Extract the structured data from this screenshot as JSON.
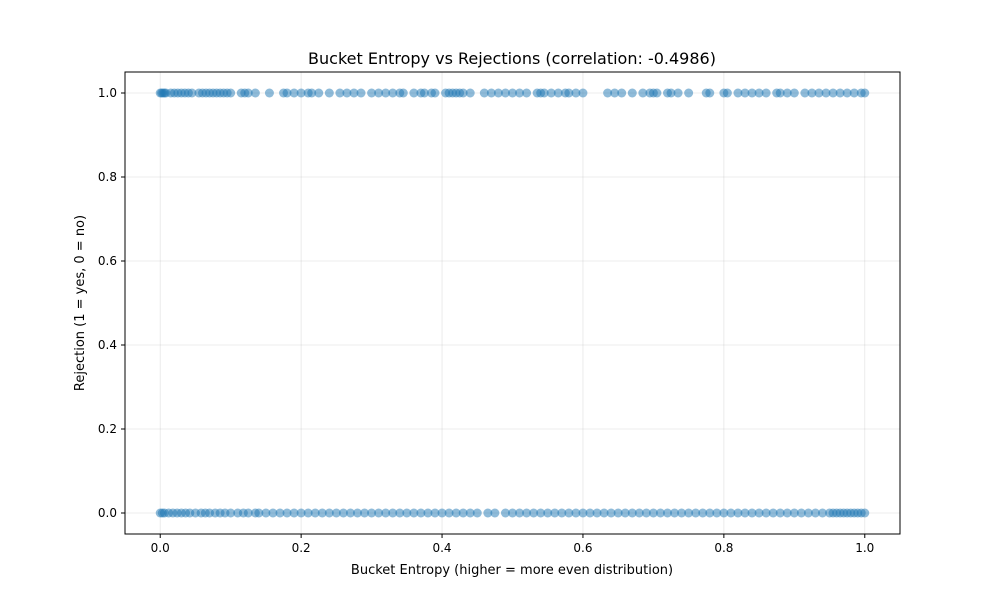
{
  "chart_data": {
    "type": "scatter",
    "title": "Bucket Entropy vs Rejections (correlation: -0.4986)",
    "xlabel": "Bucket Entropy (higher = more even distribution)",
    "ylabel": "Rejection (1 = yes, 0 = no)",
    "xlim": [
      -0.05,
      1.05
    ],
    "ylim": [
      -0.05,
      1.05
    ],
    "x_ticks": [
      0.0,
      0.2,
      0.4,
      0.6,
      0.8,
      1.0
    ],
    "x_tick_labels": [
      "0.0",
      "0.2",
      "0.4",
      "0.6",
      "0.8",
      "1.0"
    ],
    "y_ticks": [
      0.0,
      0.2,
      0.4,
      0.6,
      0.8,
      1.0
    ],
    "y_tick_labels": [
      "0.0",
      "0.2",
      "0.4",
      "0.6",
      "0.8",
      "1.0"
    ],
    "grid": true,
    "marker_color": "#1f77b4",
    "marker_alpha": 0.5,
    "series": [
      {
        "points_y1": [
          [
            0.0,
            1
          ],
          [
            0.002,
            1
          ],
          [
            0.004,
            1
          ],
          [
            0.006,
            1
          ],
          [
            0.008,
            1
          ],
          [
            0.015,
            1
          ],
          [
            0.02,
            1
          ],
          [
            0.025,
            1
          ],
          [
            0.03,
            1
          ],
          [
            0.035,
            1
          ],
          [
            0.04,
            1
          ],
          [
            0.045,
            1
          ],
          [
            0.055,
            1
          ],
          [
            0.06,
            1
          ],
          [
            0.065,
            1
          ],
          [
            0.07,
            1
          ],
          [
            0.075,
            1
          ],
          [
            0.08,
            1
          ],
          [
            0.085,
            1
          ],
          [
            0.09,
            1
          ],
          [
            0.095,
            1
          ],
          [
            0.1,
            1
          ],
          [
            0.115,
            1
          ],
          [
            0.12,
            1
          ],
          [
            0.125,
            1
          ],
          [
            0.135,
            1
          ],
          [
            0.155,
            1
          ],
          [
            0.175,
            1
          ],
          [
            0.18,
            1
          ],
          [
            0.19,
            1
          ],
          [
            0.2,
            1
          ],
          [
            0.21,
            1
          ],
          [
            0.215,
            1
          ],
          [
            0.225,
            1
          ],
          [
            0.24,
            1
          ],
          [
            0.255,
            1
          ],
          [
            0.265,
            1
          ],
          [
            0.275,
            1
          ],
          [
            0.285,
            1
          ],
          [
            0.3,
            1
          ],
          [
            0.31,
            1
          ],
          [
            0.32,
            1
          ],
          [
            0.33,
            1
          ],
          [
            0.34,
            1
          ],
          [
            0.345,
            1
          ],
          [
            0.36,
            1
          ],
          [
            0.37,
            1
          ],
          [
            0.375,
            1
          ],
          [
            0.385,
            1
          ],
          [
            0.39,
            1
          ],
          [
            0.405,
            1
          ],
          [
            0.41,
            1
          ],
          [
            0.415,
            1
          ],
          [
            0.42,
            1
          ],
          [
            0.425,
            1
          ],
          [
            0.43,
            1
          ],
          [
            0.44,
            1
          ],
          [
            0.46,
            1
          ],
          [
            0.47,
            1
          ],
          [
            0.48,
            1
          ],
          [
            0.49,
            1
          ],
          [
            0.5,
            1
          ],
          [
            0.51,
            1
          ],
          [
            0.52,
            1
          ],
          [
            0.535,
            1
          ],
          [
            0.54,
            1
          ],
          [
            0.545,
            1
          ],
          [
            0.555,
            1
          ],
          [
            0.565,
            1
          ],
          [
            0.575,
            1
          ],
          [
            0.58,
            1
          ],
          [
            0.59,
            1
          ],
          [
            0.6,
            1
          ],
          [
            0.635,
            1
          ],
          [
            0.645,
            1
          ],
          [
            0.655,
            1
          ],
          [
            0.67,
            1
          ],
          [
            0.685,
            1
          ],
          [
            0.695,
            1
          ],
          [
            0.7,
            1
          ],
          [
            0.705,
            1
          ],
          [
            0.72,
            1
          ],
          [
            0.725,
            1
          ],
          [
            0.735,
            1
          ],
          [
            0.75,
            1
          ],
          [
            0.775,
            1
          ],
          [
            0.78,
            1
          ],
          [
            0.8,
            1
          ],
          [
            0.805,
            1
          ],
          [
            0.82,
            1
          ],
          [
            0.83,
            1
          ],
          [
            0.84,
            1
          ],
          [
            0.85,
            1
          ],
          [
            0.86,
            1
          ],
          [
            0.875,
            1
          ],
          [
            0.88,
            1
          ],
          [
            0.89,
            1
          ],
          [
            0.9,
            1
          ],
          [
            0.915,
            1
          ],
          [
            0.925,
            1
          ],
          [
            0.935,
            1
          ],
          [
            0.945,
            1
          ],
          [
            0.955,
            1
          ],
          [
            0.965,
            1
          ],
          [
            0.975,
            1
          ],
          [
            0.985,
            1
          ],
          [
            0.995,
            1
          ],
          [
            1.0,
            1
          ]
        ],
        "points_y0": [
          [
            0.0,
            0
          ],
          [
            0.003,
            0
          ],
          [
            0.006,
            0
          ],
          [
            0.012,
            0
          ],
          [
            0.018,
            0
          ],
          [
            0.024,
            0
          ],
          [
            0.03,
            0
          ],
          [
            0.036,
            0
          ],
          [
            0.042,
            0
          ],
          [
            0.05,
            0
          ],
          [
            0.058,
            0
          ],
          [
            0.064,
            0
          ],
          [
            0.07,
            0
          ],
          [
            0.078,
            0
          ],
          [
            0.085,
            0
          ],
          [
            0.092,
            0
          ],
          [
            0.1,
            0
          ],
          [
            0.11,
            0
          ],
          [
            0.118,
            0
          ],
          [
            0.125,
            0
          ],
          [
            0.135,
            0
          ],
          [
            0.14,
            0
          ],
          [
            0.15,
            0
          ],
          [
            0.16,
            0
          ],
          [
            0.17,
            0
          ],
          [
            0.18,
            0
          ],
          [
            0.19,
            0
          ],
          [
            0.2,
            0
          ],
          [
            0.21,
            0
          ],
          [
            0.22,
            0
          ],
          [
            0.23,
            0
          ],
          [
            0.24,
            0
          ],
          [
            0.25,
            0
          ],
          [
            0.26,
            0
          ],
          [
            0.27,
            0
          ],
          [
            0.28,
            0
          ],
          [
            0.29,
            0
          ],
          [
            0.3,
            0
          ],
          [
            0.31,
            0
          ],
          [
            0.32,
            0
          ],
          [
            0.33,
            0
          ],
          [
            0.34,
            0
          ],
          [
            0.35,
            0
          ],
          [
            0.36,
            0
          ],
          [
            0.37,
            0
          ],
          [
            0.38,
            0
          ],
          [
            0.39,
            0
          ],
          [
            0.4,
            0
          ],
          [
            0.41,
            0
          ],
          [
            0.42,
            0
          ],
          [
            0.43,
            0
          ],
          [
            0.44,
            0
          ],
          [
            0.45,
            0
          ],
          [
            0.465,
            0
          ],
          [
            0.475,
            0
          ],
          [
            0.49,
            0
          ],
          [
            0.5,
            0
          ],
          [
            0.51,
            0
          ],
          [
            0.52,
            0
          ],
          [
            0.53,
            0
          ],
          [
            0.54,
            0
          ],
          [
            0.55,
            0
          ],
          [
            0.56,
            0
          ],
          [
            0.57,
            0
          ],
          [
            0.58,
            0
          ],
          [
            0.59,
            0
          ],
          [
            0.6,
            0
          ],
          [
            0.61,
            0
          ],
          [
            0.62,
            0
          ],
          [
            0.63,
            0
          ],
          [
            0.64,
            0
          ],
          [
            0.65,
            0
          ],
          [
            0.66,
            0
          ],
          [
            0.67,
            0
          ],
          [
            0.68,
            0
          ],
          [
            0.69,
            0
          ],
          [
            0.7,
            0
          ],
          [
            0.71,
            0
          ],
          [
            0.72,
            0
          ],
          [
            0.73,
            0
          ],
          [
            0.74,
            0
          ],
          [
            0.75,
            0
          ],
          [
            0.76,
            0
          ],
          [
            0.77,
            0
          ],
          [
            0.78,
            0
          ],
          [
            0.79,
            0
          ],
          [
            0.8,
            0
          ],
          [
            0.81,
            0
          ],
          [
            0.82,
            0
          ],
          [
            0.83,
            0
          ],
          [
            0.84,
            0
          ],
          [
            0.85,
            0
          ],
          [
            0.86,
            0
          ],
          [
            0.87,
            0
          ],
          [
            0.88,
            0
          ],
          [
            0.89,
            0
          ],
          [
            0.9,
            0
          ],
          [
            0.91,
            0
          ],
          [
            0.92,
            0
          ],
          [
            0.93,
            0
          ],
          [
            0.94,
            0
          ],
          [
            0.95,
            0
          ],
          [
            0.955,
            0
          ],
          [
            0.96,
            0
          ],
          [
            0.965,
            0
          ],
          [
            0.97,
            0
          ],
          [
            0.975,
            0
          ],
          [
            0.98,
            0
          ],
          [
            0.985,
            0
          ],
          [
            0.99,
            0
          ],
          [
            0.995,
            0
          ],
          [
            1.0,
            0
          ]
        ]
      }
    ]
  }
}
